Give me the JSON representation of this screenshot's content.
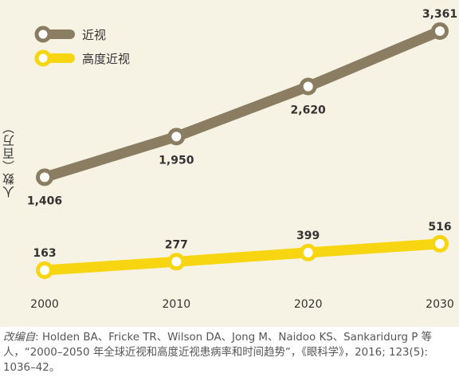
{
  "chart_data": {
    "type": "line",
    "x": [
      2000,
      2010,
      2020,
      2030
    ],
    "series": [
      {
        "name": "近视",
        "values": [
          1406,
          1950,
          2620,
          3361
        ],
        "labels": [
          "1,406",
          "1,950",
          "2,620",
          "3,361"
        ],
        "color": "#8b7d62"
      },
      {
        "name": "高度近视",
        "values": [
          163,
          277,
          399,
          516
        ],
        "labels": [
          "163",
          "277",
          "399",
          "516"
        ],
        "color": "#f7d511"
      }
    ],
    "x_tick_labels": [
      "2000",
      "2010",
      "2020",
      "2030"
    ],
    "ylabel": "人数（百万）",
    "xlabel": "",
    "title": "",
    "legend_position": "top-left",
    "grid": false
  },
  "colors": {
    "background": "#f6f3e4",
    "text": "#333333"
  },
  "source": {
    "prefix": "改编自",
    "text": ": Holden BA、Fricke TR、Wilson DA、Jong M、Naidoo KS、Sankaridurg P 等人，“2000–2050 年全球近视和高度近视患病率和时间趋势”，《眼科学》，2016; 123(5): 1036–42。"
  }
}
